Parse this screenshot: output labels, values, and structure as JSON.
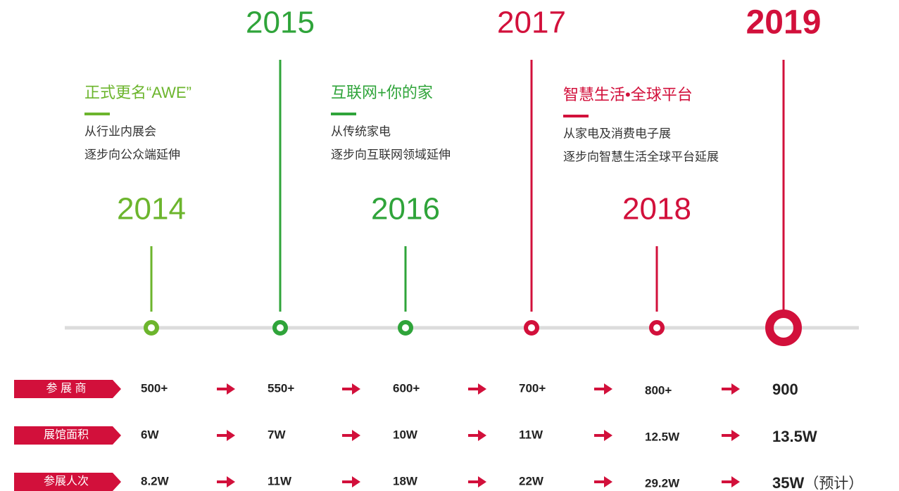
{
  "timeline": {
    "years": [
      "2014",
      "2015",
      "2016",
      "2017",
      "2018",
      "2019"
    ],
    "milestones": [
      {
        "title": "正式更名“AWE”",
        "lines": [
          "从行业内展会",
          "逐步向公众端延伸"
        ]
      },
      {
        "title": "互联网+你的家",
        "lines": [
          "从传统家电",
          "逐步向互联网领域延伸"
        ]
      },
      {
        "title": "智慧生活•全球平台",
        "lines": [
          "从家电及消费电子展",
          "逐步向智慧生活全球平台延展"
        ]
      }
    ]
  },
  "stats": [
    {
      "label": "参 展 商",
      "values": [
        "500+",
        "550+",
        "600+",
        "700+",
        "800+",
        "900"
      ]
    },
    {
      "label": "展馆面积",
      "values": [
        "6W",
        "7W",
        "10W",
        "11W",
        "12.5W",
        "13.5W"
      ]
    },
    {
      "label": "参展人次",
      "values": [
        "8.2W",
        "11W",
        "18W",
        "22W",
        "29.2W",
        "35W"
      ],
      "note": "（预计）"
    }
  ]
}
